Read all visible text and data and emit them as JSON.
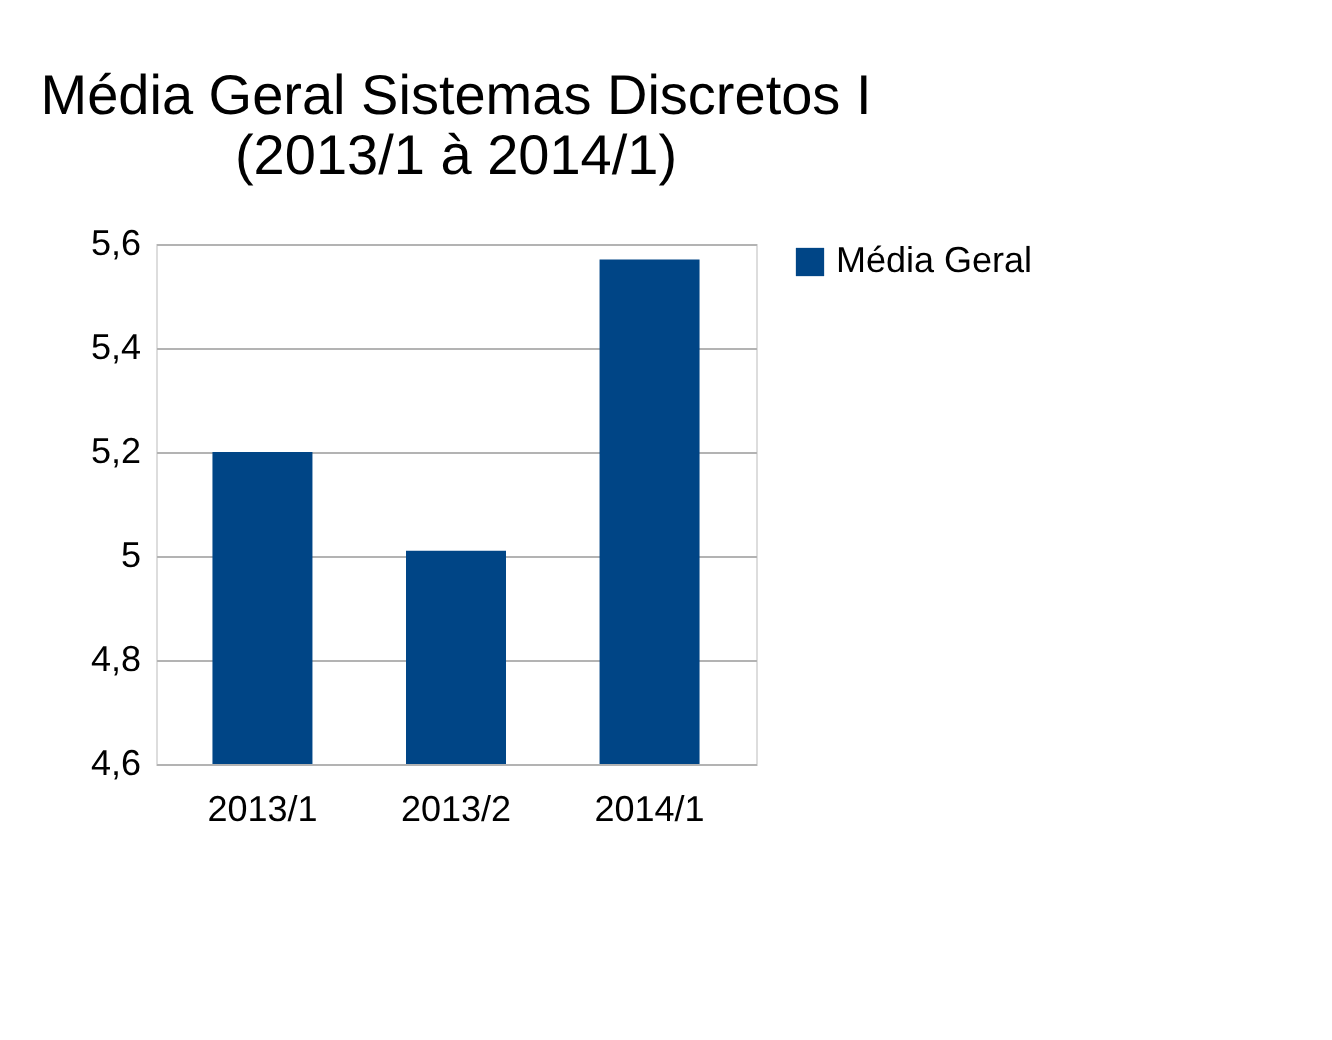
{
  "chart_data": {
    "type": "bar",
    "title": "Média Geral Sistemas Discretos I\n(2013/1 à 2014/1)",
    "categories": [
      "2013/1",
      "2013/2",
      "2014/1"
    ],
    "series": [
      {
        "name": "Média Geral",
        "color": "#004586",
        "values": [
          5.2,
          5.01,
          5.57
        ]
      }
    ],
    "ylim": [
      4.6,
      5.6
    ],
    "yticks": [
      {
        "value": 4.6,
        "label": "4,6"
      },
      {
        "value": 4.8,
        "label": "4,8"
      },
      {
        "value": 5,
        "label": "5"
      },
      {
        "value": 5.2,
        "label": "5,2"
      },
      {
        "value": 5.4,
        "label": "5,4"
      },
      {
        "value": 5.6,
        "label": "5,6"
      }
    ],
    "grid": "y",
    "legend": "right"
  }
}
